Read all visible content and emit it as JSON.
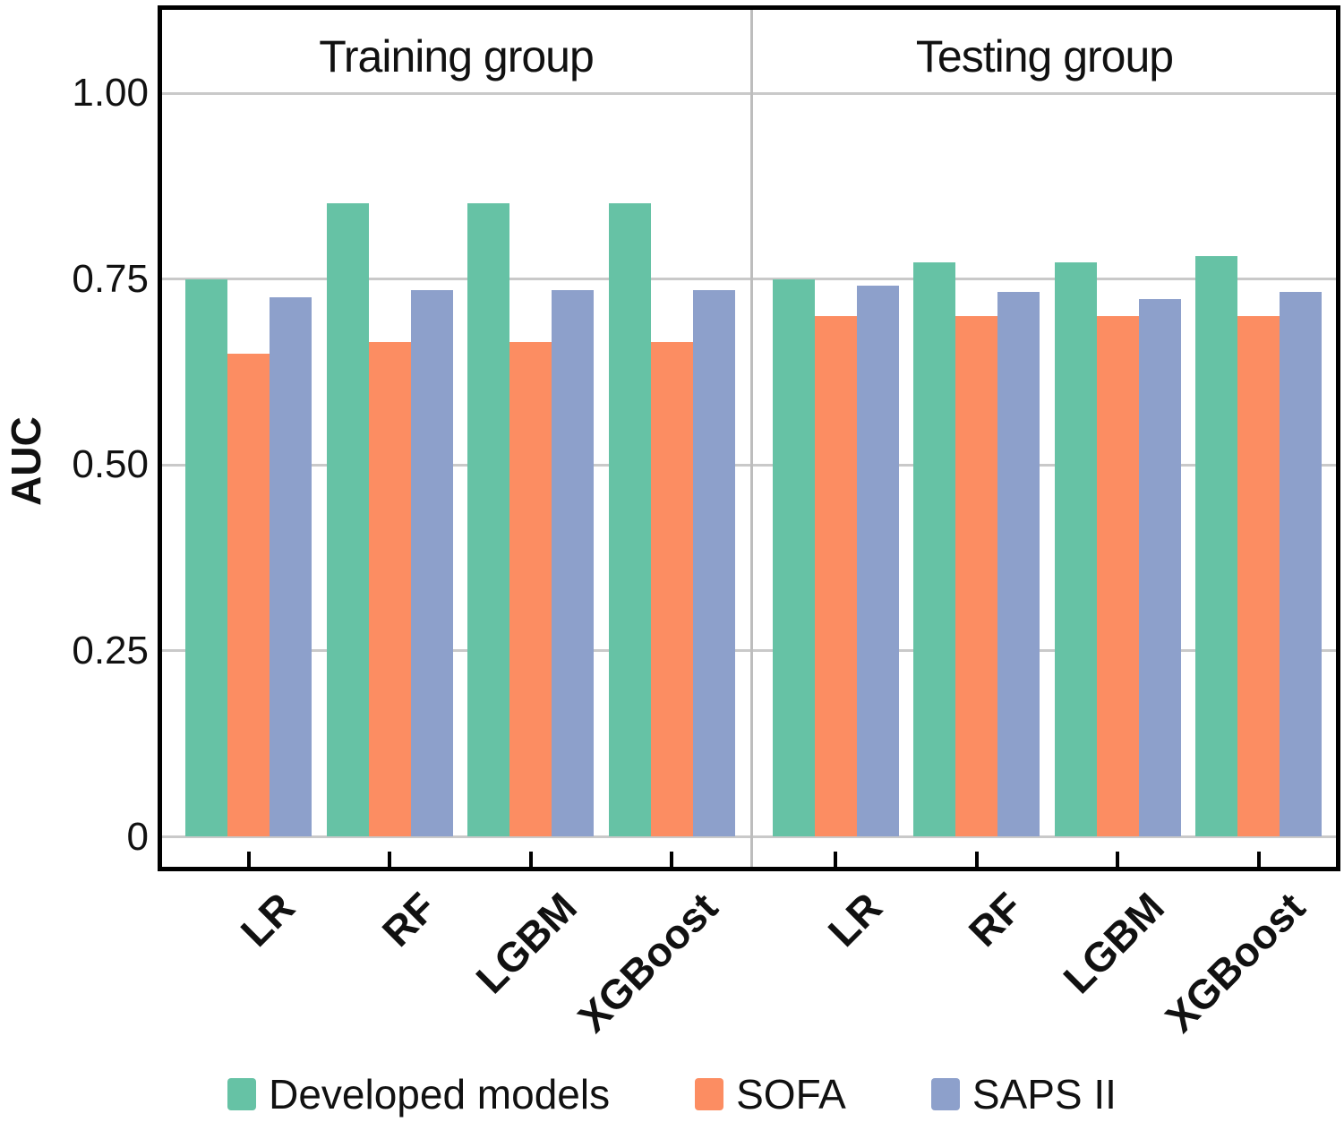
{
  "chart_data": {
    "type": "bar",
    "ylabel": "AUC",
    "ylim": [
      0,
      1.12
    ],
    "grid": true,
    "legend_position": "bottom",
    "yticks": [
      {
        "label": "1.00",
        "value": 1.0
      },
      {
        "label": "0.75",
        "value": 0.75
      },
      {
        "label": "0.50",
        "value": 0.5
      },
      {
        "label": "0.25",
        "value": 0.25
      },
      {
        "label": "0",
        "value": 0.0
      }
    ],
    "categories": [
      "LR",
      "RF",
      "LGBM",
      "XGBoost"
    ],
    "facets": [
      {
        "title": "Training group",
        "series": [
          {
            "name": "Developed models",
            "color": "#66C2A5",
            "values": [
              0.75,
              0.852,
              0.852,
              0.852
            ]
          },
          {
            "name": "SOFA",
            "color": "#FC8D62",
            "values": [
              0.65,
              0.665,
              0.665,
              0.665
            ]
          },
          {
            "name": "SAPS II",
            "color": "#8DA0CB",
            "values": [
              0.725,
              0.735,
              0.735,
              0.735
            ]
          }
        ]
      },
      {
        "title": "Testing group",
        "series": [
          {
            "name": "Developed models",
            "color": "#66C2A5",
            "values": [
              0.75,
              0.772,
              0.772,
              0.781
            ]
          },
          {
            "name": "SOFA",
            "color": "#FC8D62",
            "values": [
              0.7,
              0.7,
              0.7,
              0.7
            ]
          },
          {
            "name": "SAPS II",
            "color": "#8DA0CB",
            "values": [
              0.741,
              0.733,
              0.723,
              0.733
            ]
          }
        ]
      }
    ]
  },
  "legend": {
    "items": [
      {
        "label": "Developed models",
        "color": "#66C2A5"
      },
      {
        "label": "SOFA",
        "color": "#FC8D62"
      },
      {
        "label": "SAPS II",
        "color": "#8DA0CB"
      }
    ]
  },
  "colors": {
    "grid": "#C9C9C9",
    "separator": "#BDBDBD",
    "frame": "#000000",
    "text": "#111111",
    "background": "#FFFFFF"
  }
}
